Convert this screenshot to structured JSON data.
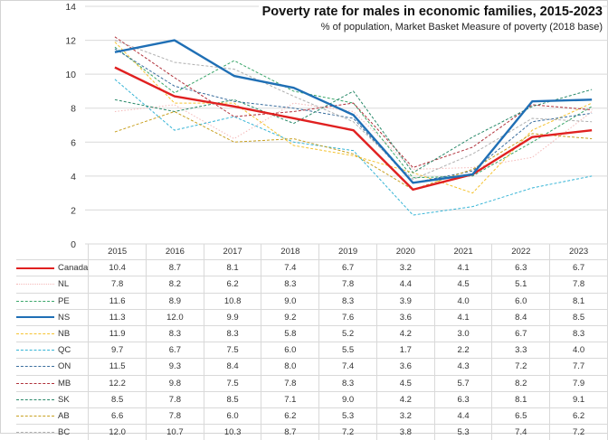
{
  "chart_data": {
    "type": "line",
    "title": "Poverty rate for males in economic families, 2015-2023",
    "subtitle": "% of population, Market Basket Measure of poverty (2018 base)",
    "xlabel": "",
    "ylabel": "",
    "ylim": [
      0,
      14
    ],
    "yticks": [
      "0",
      "2",
      "4",
      "6",
      "8",
      "10",
      "12",
      "14"
    ],
    "grid": true,
    "legend": "data-table-bottom",
    "categories": [
      "2015",
      "2016",
      "2017",
      "2018",
      "2019",
      "2020",
      "2021",
      "2022",
      "2023"
    ],
    "series": [
      {
        "name": "Canada",
        "color": "#e02020",
        "style": "solid-thick",
        "values": [
          10.4,
          8.7,
          8.1,
          7.4,
          6.7,
          3.2,
          4.1,
          6.3,
          6.7
        ],
        "labels": [
          "10.4",
          "8.7",
          "8.1",
          "7.4",
          "6.7",
          "3.2",
          "4.1",
          "6.3",
          "6.7"
        ]
      },
      {
        "name": "NL",
        "color": "#f4b8b8",
        "style": "dotted",
        "values": [
          7.8,
          8.2,
          6.2,
          8.3,
          7.8,
          4.4,
          4.5,
          5.1,
          7.8
        ],
        "labels": [
          "7.8",
          "8.2",
          "6.2",
          "8.3",
          "7.8",
          "4.4",
          "4.5",
          "5.1",
          "7.8"
        ]
      },
      {
        "name": "PE",
        "color": "#3aa66a",
        "style": "dashed",
        "values": [
          11.6,
          8.9,
          10.8,
          9.0,
          8.3,
          3.9,
          4.0,
          6.0,
          8.1
        ],
        "labels": [
          "11.6",
          "8.9",
          "10.8",
          "9.0",
          "8.3",
          "3.9",
          "4.0",
          "6.0",
          "8.1"
        ]
      },
      {
        "name": "NS",
        "color": "#1f6fb5",
        "style": "solid-thick",
        "values": [
          11.3,
          12.0,
          9.9,
          9.2,
          7.6,
          3.6,
          4.1,
          8.4,
          8.5
        ],
        "labels": [
          "11.3",
          "12.0",
          "9.9",
          "9.2",
          "7.6",
          "3.6",
          "4.1",
          "8.4",
          "8.5"
        ]
      },
      {
        "name": "NB",
        "color": "#f5c330",
        "style": "dashed",
        "values": [
          11.9,
          8.3,
          8.3,
          5.8,
          5.2,
          4.2,
          3.0,
          6.7,
          8.3
        ],
        "labels": [
          "11.9",
          "8.3",
          "8.3",
          "5.8",
          "5.2",
          "4.2",
          "3.0",
          "6.7",
          "8.3"
        ]
      },
      {
        "name": "QC",
        "color": "#35b4d6",
        "style": "dashed",
        "values": [
          9.7,
          6.7,
          7.5,
          6.0,
          5.5,
          1.7,
          2.2,
          3.3,
          4.0
        ],
        "labels": [
          "9.7",
          "6.7",
          "7.5",
          "6.0",
          "5.5",
          "1.7",
          "2.2",
          "3.3",
          "4.0"
        ]
      },
      {
        "name": "ON",
        "color": "#3a6e9e",
        "style": "dashed",
        "values": [
          11.5,
          9.3,
          8.4,
          8.0,
          7.4,
          3.6,
          4.3,
          7.2,
          7.7
        ],
        "labels": [
          "11.5",
          "9.3",
          "8.4",
          "8.0",
          "7.4",
          "3.6",
          "4.3",
          "7.2",
          "7.7"
        ]
      },
      {
        "name": "MB",
        "color": "#b0303a",
        "style": "dashed",
        "values": [
          12.2,
          9.8,
          7.5,
          7.8,
          8.3,
          4.5,
          5.7,
          8.2,
          7.9
        ],
        "labels": [
          "12.2",
          "9.8",
          "7.5",
          "7.8",
          "8.3",
          "4.5",
          "5.7",
          "8.2",
          "7.9"
        ]
      },
      {
        "name": "SK",
        "color": "#2a8a6a",
        "style": "dashed",
        "values": [
          8.5,
          7.8,
          8.5,
          7.1,
          9.0,
          4.2,
          6.3,
          8.1,
          9.1
        ],
        "labels": [
          "8.5",
          "7.8",
          "8.5",
          "7.1",
          "9.0",
          "4.2",
          "6.3",
          "8.1",
          "9.1"
        ]
      },
      {
        "name": "AB",
        "color": "#c8a020",
        "style": "dashed",
        "values": [
          6.6,
          7.8,
          6.0,
          6.2,
          5.3,
          3.2,
          4.4,
          6.5,
          6.2
        ],
        "labels": [
          "6.6",
          "7.8",
          "6.0",
          "6.2",
          "5.3",
          "3.2",
          "4.4",
          "6.5",
          "6.2"
        ]
      },
      {
        "name": "BC",
        "color": "#b0b0b0",
        "style": "dashed",
        "values": [
          12.0,
          10.7,
          10.3,
          8.7,
          7.2,
          3.8,
          5.3,
          7.4,
          7.2
        ],
        "labels": [
          "12.0",
          "10.7",
          "10.3",
          "8.7",
          "7.2",
          "3.8",
          "5.3",
          "7.4",
          "7.2"
        ]
      }
    ]
  }
}
